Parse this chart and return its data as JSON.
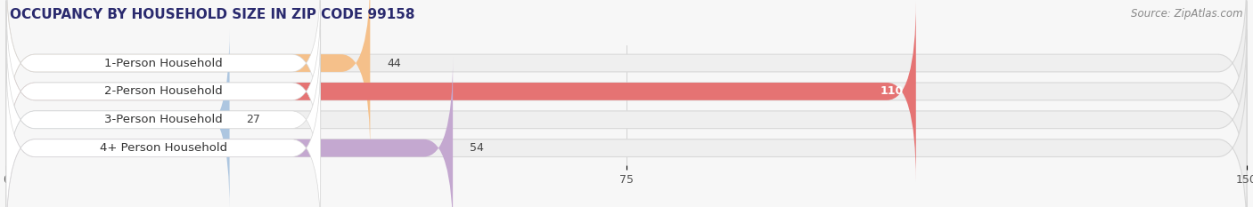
{
  "title": "OCCUPANCY BY HOUSEHOLD SIZE IN ZIP CODE 99158",
  "source": "Source: ZipAtlas.com",
  "categories": [
    "1-Person Household",
    "2-Person Household",
    "3-Person Household",
    "4+ Person Household"
  ],
  "values": [
    44,
    110,
    27,
    54
  ],
  "bar_colors": [
    "#f5c08a",
    "#e57373",
    "#adc6e0",
    "#c4a8d0"
  ],
  "xlim": [
    0,
    150
  ],
  "xticks": [
    0,
    75,
    150
  ],
  "background_color": "#f7f7f7",
  "bar_bg_color": "#efefef",
  "bar_border_color": "#d8d8d8",
  "white_label_bg": "#ffffff",
  "title_fontsize": 11,
  "source_fontsize": 8.5,
  "label_fontsize": 9.5,
  "value_fontsize": 9,
  "figsize": [
    14.06,
    2.33
  ],
  "dpi": 100
}
